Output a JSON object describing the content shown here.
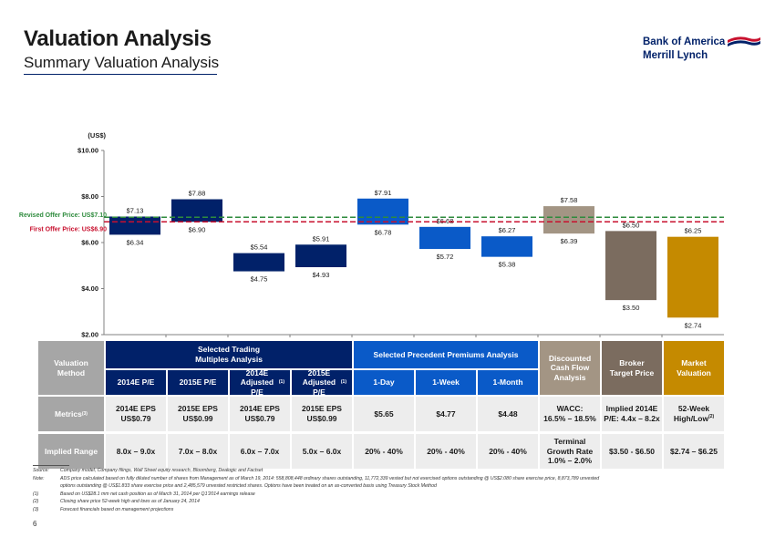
{
  "header": {
    "title": "Valuation Analysis",
    "subtitle": "Summary Valuation Analysis"
  },
  "logo": {
    "line1": "Bank of America",
    "line2": "Merrill Lynch",
    "icon": "flag-logo-icon",
    "color": "#012169"
  },
  "chart_data": {
    "type": "bar",
    "subtype": "floating-range",
    "ylabel": "(US$)",
    "ylim": [
      2,
      10
    ],
    "yticks": [
      "$2.00",
      "$4.00",
      "$6.00",
      "$8.00",
      "$10.00"
    ],
    "ytick_values": [
      2,
      4,
      6,
      8,
      10
    ],
    "reference_lines": [
      {
        "label": "Revised Offer Price: US$7.10",
        "value": 7.1,
        "color": "#2e8b3d"
      },
      {
        "label": "First Offer Price: US$6.90",
        "value": 6.9,
        "color": "#c8102e"
      }
    ],
    "bars": [
      {
        "low": 6.34,
        "high": 7.13,
        "low_label": "$6.34",
        "high_label": "$7.13",
        "color": "#012169"
      },
      {
        "low": 6.9,
        "high": 7.88,
        "low_label": "$6.90",
        "high_label": "$7.88",
        "color": "#012169"
      },
      {
        "low": 4.75,
        "high": 5.54,
        "low_label": "$4.75",
        "high_label": "$5.54",
        "color": "#012169"
      },
      {
        "low": 4.93,
        "high": 5.91,
        "low_label": "$4.93",
        "high_label": "$5.91",
        "color": "#012169"
      },
      {
        "low": 6.78,
        "high": 7.91,
        "low_label": "$6.78",
        "high_label": "$7.91",
        "color": "#0a5ac8"
      },
      {
        "low": 5.72,
        "high": 6.68,
        "low_label": "$5.72",
        "high_label": "$6.68",
        "color": "#0a5ac8"
      },
      {
        "low": 5.38,
        "high": 6.27,
        "low_label": "$5.38",
        "high_label": "$6.27",
        "color": "#0a5ac8"
      },
      {
        "low": 6.39,
        "high": 7.58,
        "low_label": "$6.39",
        "high_label": "$7.58",
        "color": "#a39584"
      },
      {
        "low": 3.5,
        "high": 6.5,
        "low_label": "$3.50",
        "high_label": "$6.50",
        "color": "#7b6c5f"
      },
      {
        "low": 2.74,
        "high": 6.25,
        "low_label": "$2.74",
        "high_label": "$6.25",
        "color": "#c58a00"
      }
    ]
  },
  "table": {
    "side_labels": {
      "method": "Valuation Method",
      "metrics": "Metrics",
      "metrics_sup": "(3)",
      "implied": "Implied Range"
    },
    "groups": [
      {
        "label": "Selected Trading Multiples Analysis"
      },
      {
        "label": "Selected Precedent Premiums Analysis"
      },
      {
        "label": "Discounted Cash Flow Analysis"
      },
      {
        "label": "Broker Target Price"
      },
      {
        "label": "Market Valuation"
      }
    ],
    "subheaders": [
      {
        "label": "2014E P/E",
        "sup": ""
      },
      {
        "label": "2015E P/E",
        "sup": ""
      },
      {
        "label": "2014E Adjusted P/E",
        "sup": "(1)"
      },
      {
        "label": "2015E Adjusted P/E",
        "sup": "(1)"
      },
      {
        "label": "1-Day",
        "sup": ""
      },
      {
        "label": "1-Week",
        "sup": ""
      },
      {
        "label": "1-Month",
        "sup": ""
      }
    ],
    "metrics": [
      {
        "l1": "2014E EPS",
        "l2": "US$0.79",
        "sup": ""
      },
      {
        "l1": "2015E EPS",
        "l2": "US$0.99",
        "sup": ""
      },
      {
        "l1": "2014E EPS",
        "l2": "US$0.79",
        "sup": ""
      },
      {
        "l1": "2015E EPS",
        "l2": "US$0.99",
        "sup": ""
      },
      {
        "l1": "$5.65",
        "l2": "",
        "sup": ""
      },
      {
        "l1": "$4.77",
        "l2": "",
        "sup": ""
      },
      {
        "l1": "$4.48",
        "l2": "",
        "sup": ""
      },
      {
        "l1": "WACC:",
        "l2": "16.5% – 18.5%",
        "sup": ""
      },
      {
        "l1": "Implied 2014E",
        "l2": "P/E: 4.4x – 8.2x",
        "sup": ""
      },
      {
        "l1": "52-Week",
        "l2": "High/Low",
        "sup": "(2)"
      }
    ],
    "implied": [
      {
        "l1": "8.0x – 9.0x",
        "l2": "",
        "l3": ""
      },
      {
        "l1": "7.0x – 8.0x",
        "l2": "",
        "l3": ""
      },
      {
        "l1": "6.0x – 7.0x",
        "l2": "",
        "l3": ""
      },
      {
        "l1": "5.0x – 6.0x",
        "l2": "",
        "l3": ""
      },
      {
        "l1": "20% - 40%",
        "l2": "",
        "l3": ""
      },
      {
        "l1": "20% - 40%",
        "l2": "",
        "l3": ""
      },
      {
        "l1": "20% - 40%",
        "l2": "",
        "l3": ""
      },
      {
        "l1": "Terminal",
        "l2": "Growth Rate",
        "l3": "1.0% – 2.0%"
      },
      {
        "l1": "$3.50 - $6.50",
        "l2": "",
        "l3": ""
      },
      {
        "l1": "$2.74 – $6.25",
        "l2": "",
        "l3": ""
      }
    ]
  },
  "footnotes": [
    {
      "k": "Source:",
      "t": "Company model, Company filings, Wall Street equity research, Bloomberg, Dealogic and Factset"
    },
    {
      "k": "Note:",
      "t": "ADS price calculated based on fully diluted number of shares from Management as of March 19, 2014: 558,808,448 ordinary shares outstanding, 11,772,339 vested but not exercised options outstanding @ US$2.080 share exercise price, 8,873,789 unvested"
    },
    {
      "k": "",
      "t": "options outstanding @ US$1.833 share exercise price and 2,485,579 unvested restricted shares. Options have been treated on an as-converted basis using Treasury Stock Method"
    },
    {
      "k": "(1)",
      "t": "Based on US$28.1 mm net cash position as of March 31, 2014 per Q1'2014 earnings release"
    },
    {
      "k": "(2)",
      "t": "Closing share price 52-week high and lows as of January 24, 2014"
    },
    {
      "k": "(3)",
      "t": "Forecast financials based on management projections"
    }
  ],
  "page_number": "6"
}
